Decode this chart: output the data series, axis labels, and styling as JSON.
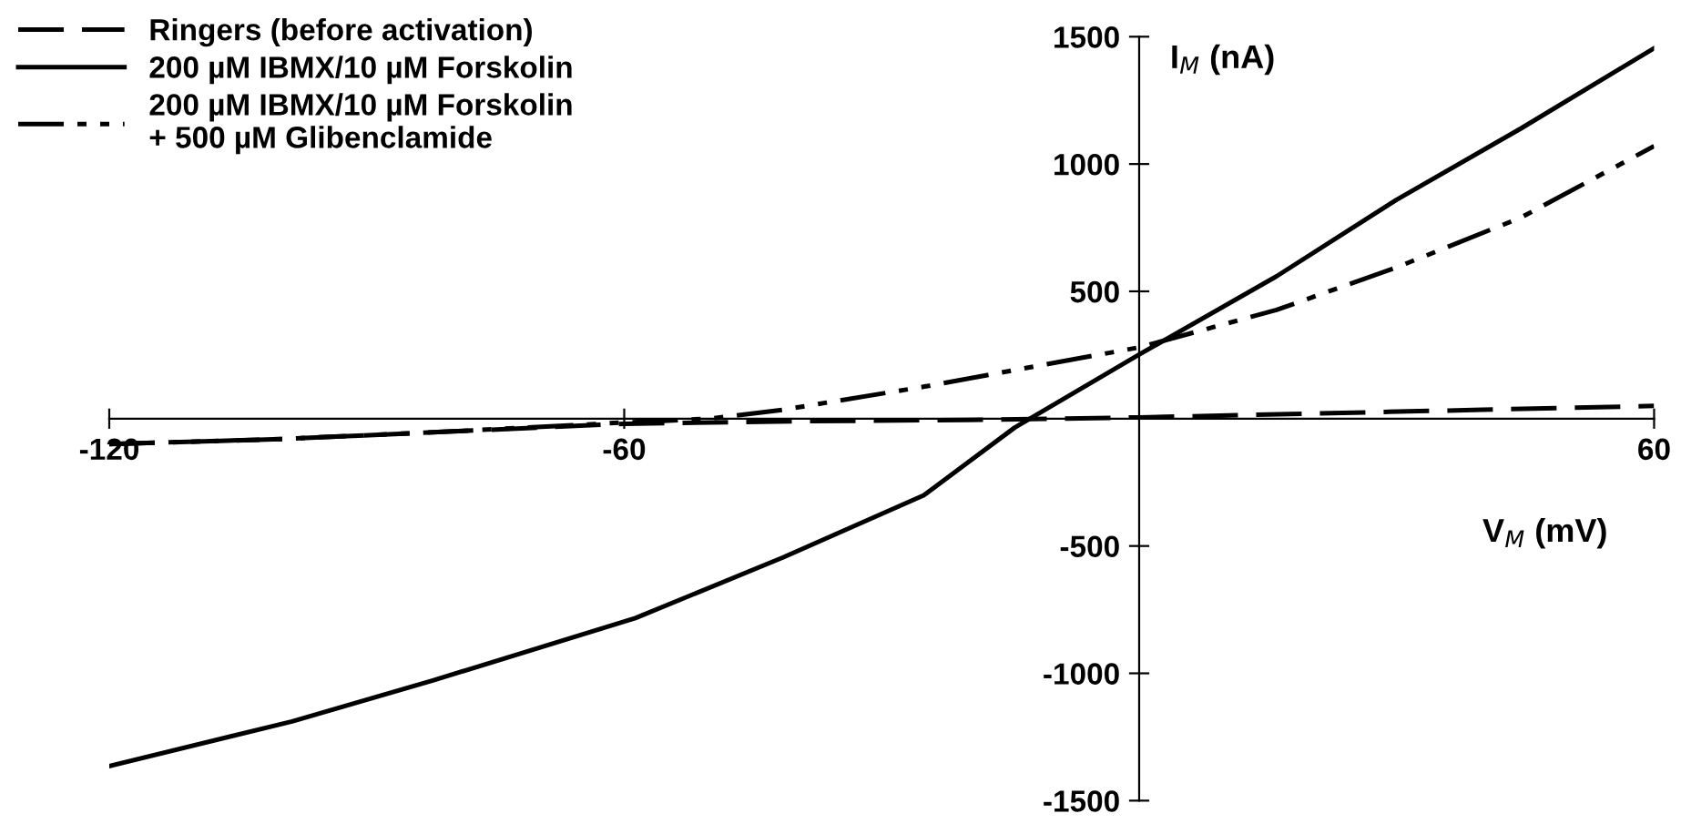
{
  "chart_data": {
    "type": "line",
    "xlabel": "V$_{M}$ (mV)",
    "ylabel": "I$_{M}$ (nA)",
    "xlim": [
      -120,
      60
    ],
    "ylim": [
      -1500,
      1500
    ],
    "xticks": [
      -120,
      -60,
      60
    ],
    "yticks": [
      -1500,
      -1000,
      -500,
      500,
      1000,
      1500
    ],
    "grid": false,
    "legend": "top left",
    "marker": "none",
    "series": [
      {
        "name": "Ringers (before activation)",
        "color": "#000000",
        "line_style": "dashed",
        "x": [
          -120,
          -100,
          -80,
          -60,
          -40,
          -20,
          0,
          20,
          40,
          60
        ],
        "values": [
          -100,
          -80,
          -50,
          -20,
          -10,
          -5,
          5,
          20,
          35,
          50
        ]
      },
      {
        "name": "200 µM IBMX/10 µM Forskolin",
        "color": "#000000",
        "line_style": "solid",
        "x": [
          -120,
          -98.7,
          -82.3,
          -58.7,
          -41.5,
          -25.1,
          -14.5,
          0,
          16,
          30,
          44.5,
          60
        ],
        "values": [
          -1364,
          -1189,
          -1028,
          -783,
          -545,
          -301,
          -35,
          252,
          559,
          860,
          1140,
          1455
        ]
      },
      {
        "name": "200 µM IBMX/10 µM Forskolin\n+ 500 µM Glibenclamide",
        "color": "#000000",
        "line_style": "dashdotdot",
        "x": [
          -120,
          -100,
          -80,
          -60,
          -50,
          -41.5,
          -25,
          0,
          16,
          30,
          44.5,
          60
        ],
        "values": [
          -100,
          -80,
          -50,
          -15,
          0,
          35,
          126,
          280,
          427,
          594,
          790,
          1070
        ]
      }
    ]
  }
}
